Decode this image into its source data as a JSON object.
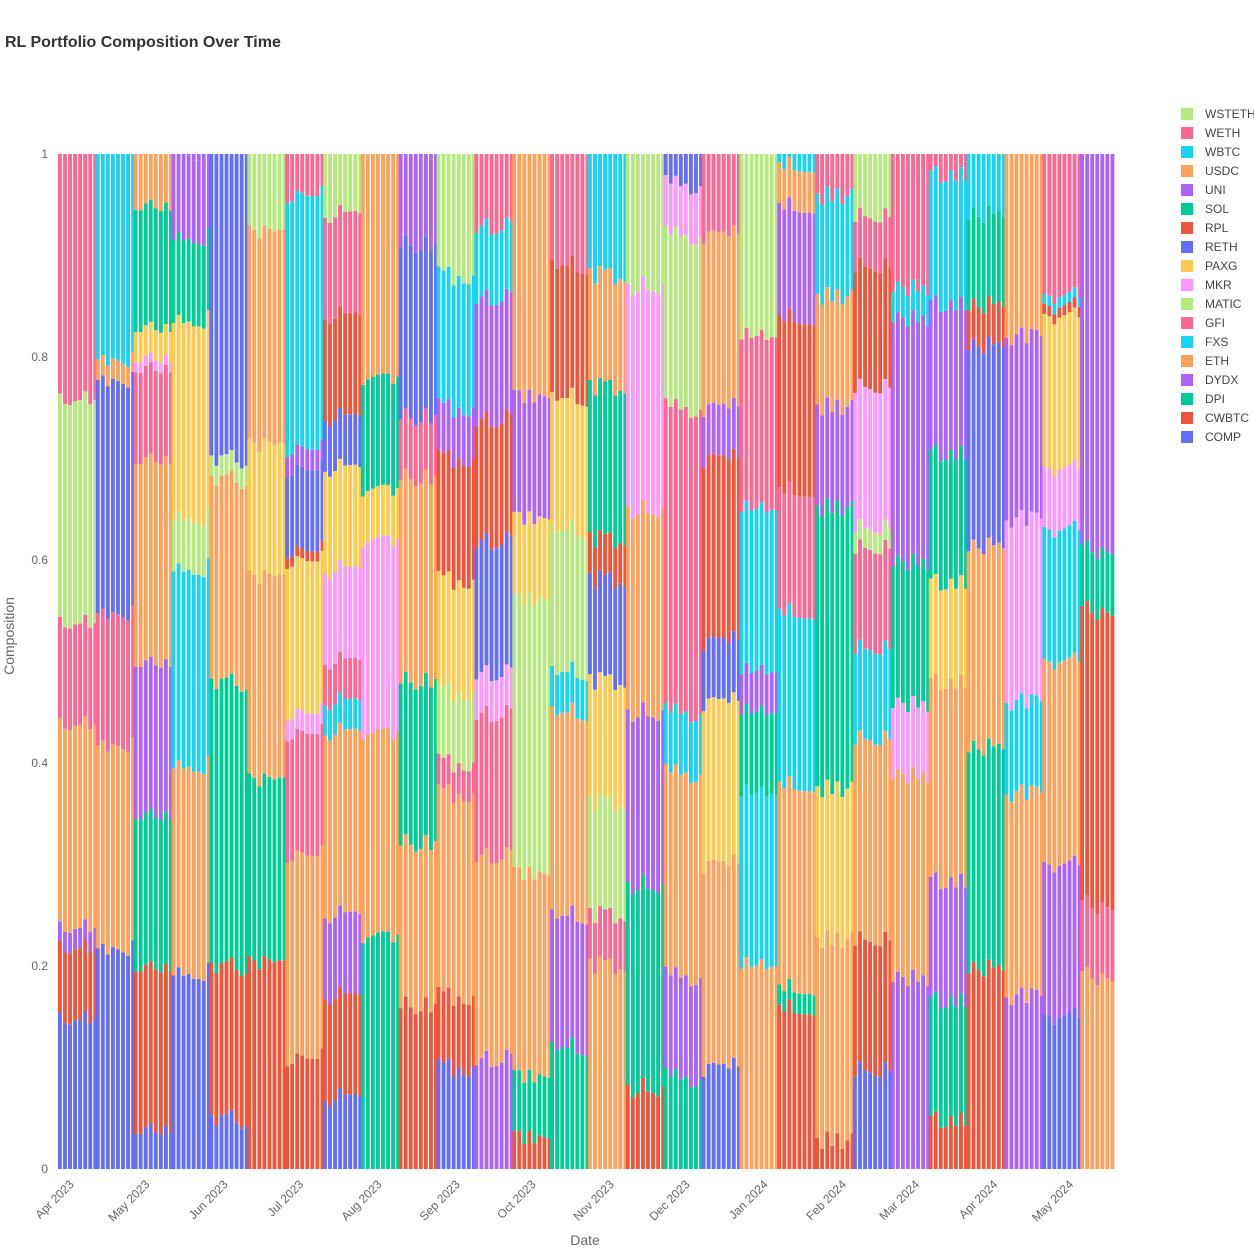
{
  "chart_data": {
    "type": "bar",
    "stacked": true,
    "title": "RL Portfolio Composition Over Time",
    "xlabel": "Date",
    "ylabel": "Composition",
    "ylim": [
      0,
      1
    ],
    "yticks": [
      "0",
      "0.2",
      "0.4",
      "0.6",
      "0.8",
      "1"
    ],
    "xticks": [
      "Apr 2023",
      "May 2023",
      "Jun 2023",
      "Jul 2023",
      "Aug 2023",
      "Sep 2023",
      "Oct 2023",
      "Nov 2023",
      "Dec 2023",
      "Jan 2024",
      "Feb 2024",
      "Mar 2024",
      "Apr 2024",
      "May 2024"
    ],
    "x_start": "2023-03-27",
    "x_end": "2024-05-18",
    "bar_days": 2,
    "legend_position": "right",
    "legend": [
      "WSTETH",
      "WETH",
      "WBTC",
      "USDC",
      "UNI",
      "SOL",
      "RPL",
      "RETH",
      "PAXG",
      "MKR",
      "MATIC",
      "GFI",
      "FXS",
      "ETH",
      "DYDX",
      "DPI",
      "CWBTC",
      "COMP"
    ],
    "colors": {
      "COMP": "#636efa",
      "CWBTC": "#ef553b",
      "DPI": "#00cc96",
      "DYDX": "#ab63fa",
      "ETH": "#ffa15a",
      "FXS": "#19d3f3",
      "GFI": "#ff6692",
      "MATIC": "#b6e880",
      "MKR": "#ff97ff",
      "PAXG": "#fecb52",
      "RETH": "#636efa",
      "RPL": "#ef553b",
      "SOL": "#00cc96",
      "UNI": "#ab63fa",
      "USDC": "#ffa15a",
      "WBTC": "#19d3f3",
      "WETH": "#ff6692",
      "WSTETH": "#b6e880"
    },
    "periods": [
      {
        "from": "2023-03-27",
        "to": "2023-04-10",
        "allocation": [
          [
            "COMP",
            0.15
          ],
          [
            "CWBTC",
            0.07
          ],
          [
            "DYDX",
            0.02
          ],
          [
            "ETH",
            0.2
          ],
          [
            "GFI",
            0.1
          ],
          [
            "MATIC",
            0.22
          ],
          [
            "WETH",
            0.24
          ]
        ]
      },
      {
        "from": "2023-04-11",
        "to": "2023-04-25",
        "allocation": [
          [
            "COMP",
            0.22
          ],
          [
            "ETH",
            0.2
          ],
          [
            "GFI",
            0.13
          ],
          [
            "RETH",
            0.23
          ],
          [
            "USDC",
            0.02
          ],
          [
            "WBTC",
            0.2
          ]
        ]
      },
      {
        "from": "2023-04-26",
        "to": "2023-05-10",
        "allocation": [
          [
            "RETH",
            0.04
          ],
          [
            "CWBTC",
            0.16
          ],
          [
            "DPI",
            0.15
          ],
          [
            "DYDX",
            0.15
          ],
          [
            "ETH",
            0.2
          ],
          [
            "GFI",
            0.09
          ],
          [
            "MKR",
            0.01
          ],
          [
            "PAXG",
            0.03
          ],
          [
            "SOL",
            0.12
          ],
          [
            "USDC",
            0.05
          ]
        ]
      },
      {
        "from": "2023-05-11",
        "to": "2023-05-25",
        "allocation": [
          [
            "COMP",
            0.19
          ],
          [
            "ETH",
            0.2
          ],
          [
            "FXS",
            0.19
          ],
          [
            "MATIC",
            0.05
          ],
          [
            "PAXG",
            0.19
          ],
          [
            "SOL",
            0.08
          ],
          [
            "UNI",
            0.08
          ]
        ]
      },
      {
        "from": "2023-05-26",
        "to": "2023-06-09",
        "allocation": [
          [
            "COMP",
            0.05
          ],
          [
            "CWBTC",
            0.15
          ],
          [
            "DPI",
            0.28
          ],
          [
            "ETH",
            0.2
          ],
          [
            "MATIC",
            0.02
          ],
          [
            "RETH",
            0.3
          ]
        ]
      },
      {
        "from": "2023-06-10",
        "to": "2023-06-24",
        "allocation": [
          [
            "CWBTC",
            0.2
          ],
          [
            "DPI",
            0.18
          ],
          [
            "ETH",
            0.2
          ],
          [
            "PAXG",
            0.13
          ],
          [
            "USDC",
            0.21
          ],
          [
            "MATIC",
            0.08
          ]
        ]
      },
      {
        "from": "2023-06-25",
        "to": "2023-07-09",
        "allocation": [
          [
            "CWBTC",
            0.11
          ],
          [
            "ETH",
            0.2
          ],
          [
            "GFI",
            0.12
          ],
          [
            "MKR",
            0.02
          ],
          [
            "PAXG",
            0.15
          ],
          [
            "RPL",
            0.01
          ],
          [
            "RETH",
            0.08
          ],
          [
            "UNI",
            0.02
          ],
          [
            "WBTC",
            0.25
          ],
          [
            "WETH",
            0.04
          ]
        ]
      },
      {
        "from": "2023-07-10",
        "to": "2023-07-24",
        "allocation": [
          [
            "COMP",
            0.07
          ],
          [
            "CWBTC",
            0.1
          ],
          [
            "DYDX",
            0.08
          ],
          [
            "ETH",
            0.18
          ],
          [
            "FXS",
            0.03
          ],
          [
            "GFI",
            0.04
          ],
          [
            "MKR",
            0.09
          ],
          [
            "PAXG",
            0.1
          ],
          [
            "RETH",
            0.05
          ],
          [
            "RPL",
            0.1
          ],
          [
            "WETH",
            0.1
          ],
          [
            "WSTETH",
            0.06
          ]
        ]
      },
      {
        "from": "2023-07-25",
        "to": "2023-08-08",
        "allocation": [
          [
            "DPI",
            0.23
          ],
          [
            "ETH",
            0.2
          ],
          [
            "MKR",
            0.19
          ],
          [
            "PAXG",
            0.05
          ],
          [
            "SOL",
            0.11
          ],
          [
            "USDC",
            0.22
          ]
        ]
      },
      {
        "from": "2023-08-09",
        "to": "2023-08-23",
        "allocation": [
          [
            "CWBTC",
            0.16
          ],
          [
            "ETH",
            0.16
          ],
          [
            "DPI",
            0.16
          ],
          [
            "ETH",
            0.2
          ],
          [
            "GFI",
            0.06
          ],
          [
            "RETH",
            0.17
          ],
          [
            "UNI",
            0.09
          ]
        ]
      },
      {
        "from": "2023-08-24",
        "to": "2023-09-07",
        "allocation": [
          [
            "COMP",
            0.1
          ],
          [
            "CWBTC",
            0.07
          ],
          [
            "ETH",
            0.2
          ],
          [
            "GFI",
            0.03
          ],
          [
            "MATIC",
            0.07
          ],
          [
            "PAXG",
            0.11
          ],
          [
            "RPL",
            0.12
          ],
          [
            "UNI",
            0.05
          ],
          [
            "FXS",
            0.13
          ],
          [
            "MATIC",
            0.12
          ]
        ]
      },
      {
        "from": "2023-09-08",
        "to": "2023-09-22",
        "allocation": [
          [
            "DYDX",
            0.11
          ],
          [
            "ETH",
            0.2
          ],
          [
            "GFI",
            0.14
          ],
          [
            "MKR",
            0.04
          ],
          [
            "RETH",
            0.13
          ],
          [
            "RPL",
            0.12
          ],
          [
            "UNI",
            0.12
          ],
          [
            "FXS",
            0.07
          ],
          [
            "WETH",
            0.07
          ]
        ]
      },
      {
        "from": "2023-09-23",
        "to": "2023-10-07",
        "allocation": [
          [
            "CWBTC",
            0.03
          ],
          [
            "DPI",
            0.06
          ],
          [
            "ETH",
            0.2
          ],
          [
            "MATIC",
            0.27
          ],
          [
            "PAXG",
            0.08
          ],
          [
            "UNI",
            0.12
          ],
          [
            "USDC",
            0.24
          ]
        ]
      },
      {
        "from": "2023-10-08",
        "to": "2023-10-22",
        "allocation": [
          [
            "DPI",
            0.12
          ],
          [
            "DYDX",
            0.13
          ],
          [
            "ETH",
            0.2
          ],
          [
            "FXS",
            0.04
          ],
          [
            "MATIC",
            0.14
          ],
          [
            "PAXG",
            0.13
          ],
          [
            "RPL",
            0.13
          ],
          [
            "WETH",
            0.11
          ]
        ]
      },
      {
        "from": "2023-10-23",
        "to": "2023-11-06",
        "allocation": [
          [
            "ETH",
            0.2
          ],
          [
            "GFI",
            0.05
          ],
          [
            "MATIC",
            0.11
          ],
          [
            "PAXG",
            0.12
          ],
          [
            "RETH",
            0.1
          ],
          [
            "RPL",
            0.04
          ],
          [
            "SOL",
            0.15
          ],
          [
            "USDC",
            0.11
          ],
          [
            "WBTC",
            0.12
          ]
        ]
      },
      {
        "from": "2023-11-07",
        "to": "2023-11-21",
        "allocation": [
          [
            "CWBTC",
            0.08
          ],
          [
            "DPI",
            0.2
          ],
          [
            "DYDX",
            0.17
          ],
          [
            "ETH",
            0.2
          ],
          [
            "MKR",
            0.22
          ],
          [
            "MATIC",
            0.13
          ]
        ]
      },
      {
        "from": "2023-11-22",
        "to": "2023-12-06",
        "allocation": [
          [
            "DPI",
            0.09
          ],
          [
            "DYDX",
            0.1
          ],
          [
            "ETH",
            0.2
          ],
          [
            "FXS",
            0.06
          ],
          [
            "GFI",
            0.3
          ],
          [
            "MATIC",
            0.17
          ],
          [
            "MKR",
            0.05
          ],
          [
            "RETH",
            0.03
          ]
        ]
      },
      {
        "from": "2023-12-07",
        "to": "2023-12-21",
        "allocation": [
          [
            "COMP",
            0.1
          ],
          [
            "ETH",
            0.2
          ],
          [
            "PAXG",
            0.16
          ],
          [
            "RETH",
            0.06
          ],
          [
            "RPL",
            0.18
          ],
          [
            "UNI",
            0.05
          ],
          [
            "USDC",
            0.17
          ],
          [
            "WETH",
            0.08
          ]
        ]
      },
      {
        "from": "2023-12-22",
        "to": "2024-01-05",
        "allocation": [
          [
            "ETH",
            0.2
          ],
          [
            "FXS",
            0.17
          ],
          [
            "SOL",
            0.08
          ],
          [
            "UNI",
            0.04
          ],
          [
            "FXS",
            0.16
          ],
          [
            "GFI",
            0.17
          ],
          [
            "MATIC",
            0.18
          ]
        ]
      },
      {
        "from": "2024-01-06",
        "to": "2024-01-20",
        "allocation": [
          [
            "CWBTC",
            0.16
          ],
          [
            "DPI",
            0.02
          ],
          [
            "ETH",
            0.2
          ],
          [
            "FXS",
            0.17
          ],
          [
            "GFI",
            0.12
          ],
          [
            "RPL",
            0.17
          ],
          [
            "UNI",
            0.11
          ],
          [
            "USDC",
            0.04
          ],
          [
            "WBTC",
            0.01
          ]
        ]
      },
      {
        "from": "2024-01-21",
        "to": "2024-02-04",
        "allocation": [
          [
            "CWBTC",
            0.03
          ],
          [
            "ETH",
            0.2
          ],
          [
            "PAXG",
            0.15
          ],
          [
            "SOL",
            0.28
          ],
          [
            "UNI",
            0.1
          ],
          [
            "USDC",
            0.11
          ],
          [
            "WBTC",
            0.1
          ],
          [
            "WETH",
            0.04
          ]
        ]
      },
      {
        "from": "2024-02-05",
        "to": "2024-02-19",
        "allocation": [
          [
            "COMP",
            0.1
          ],
          [
            "CWBTC",
            0.13
          ],
          [
            "ETH",
            0.2
          ],
          [
            "FXS",
            0.09
          ],
          [
            "GFI",
            0.1
          ],
          [
            "MATIC",
            0.02
          ],
          [
            "MKR",
            0.14
          ],
          [
            "RPL",
            0.12
          ],
          [
            "WETH",
            0.05
          ],
          [
            "MATIC",
            0.06
          ]
        ]
      },
      {
        "from": "2024-02-20",
        "to": "2024-03-05",
        "allocation": [
          [
            "DYDX",
            0.19
          ],
          [
            "ETH",
            0.2
          ],
          [
            "MKR",
            0.07
          ],
          [
            "SOL",
            0.14
          ],
          [
            "UNI",
            0.24
          ],
          [
            "FXS",
            0.03
          ],
          [
            "WETH",
            0.13
          ]
        ]
      },
      {
        "from": "2024-03-06",
        "to": "2024-03-20",
        "allocation": [
          [
            "CWBTC",
            0.05
          ],
          [
            "DPI",
            0.12
          ],
          [
            "DYDX",
            0.12
          ],
          [
            "ETH",
            0.2
          ],
          [
            "PAXG",
            0.1
          ],
          [
            "SOL",
            0.13
          ],
          [
            "UNI",
            0.15
          ],
          [
            "WBTC",
            0.13
          ],
          [
            "WETH",
            0.02
          ]
        ]
      },
      {
        "from": "2024-03-21",
        "to": "2024-04-04",
        "allocation": [
          [
            "CWBTC",
            0.2
          ],
          [
            "DPI",
            0.22
          ],
          [
            "ETH",
            0.2
          ],
          [
            "RETH",
            0.2
          ],
          [
            "RPL",
            0.04
          ],
          [
            "SOL",
            0.09
          ],
          [
            "WBTC",
            0.06
          ]
        ]
      },
      {
        "from": "2024-04-05",
        "to": "2024-04-19",
        "allocation": [
          [
            "DYDX",
            0.17
          ],
          [
            "ETH",
            0.2
          ],
          [
            "FXS",
            0.09
          ],
          [
            "MKR",
            0.18
          ],
          [
            "UNI",
            0.18
          ],
          [
            "USDC",
            0.18
          ]
        ]
      },
      {
        "from": "2024-04-20",
        "to": "2024-05-04",
        "allocation": [
          [
            "COMP",
            0.15
          ],
          [
            "DYDX",
            0.15
          ],
          [
            "ETH",
            0.2
          ],
          [
            "FXS",
            0.13
          ],
          [
            "MKR",
            0.06
          ],
          [
            "PAXG",
            0.15
          ],
          [
            "RPL",
            0.01
          ],
          [
            "WBTC",
            0.01
          ],
          [
            "WETH",
            0.14
          ]
        ]
      },
      {
        "from": "2024-05-05",
        "to": "2024-05-18",
        "allocation": [
          [
            "ETH",
            0.19
          ],
          [
            "GFI",
            0.07
          ],
          [
            "RPL",
            0.29
          ],
          [
            "SOL",
            0.06
          ],
          [
            "UNI",
            0.39
          ]
        ]
      }
    ]
  }
}
